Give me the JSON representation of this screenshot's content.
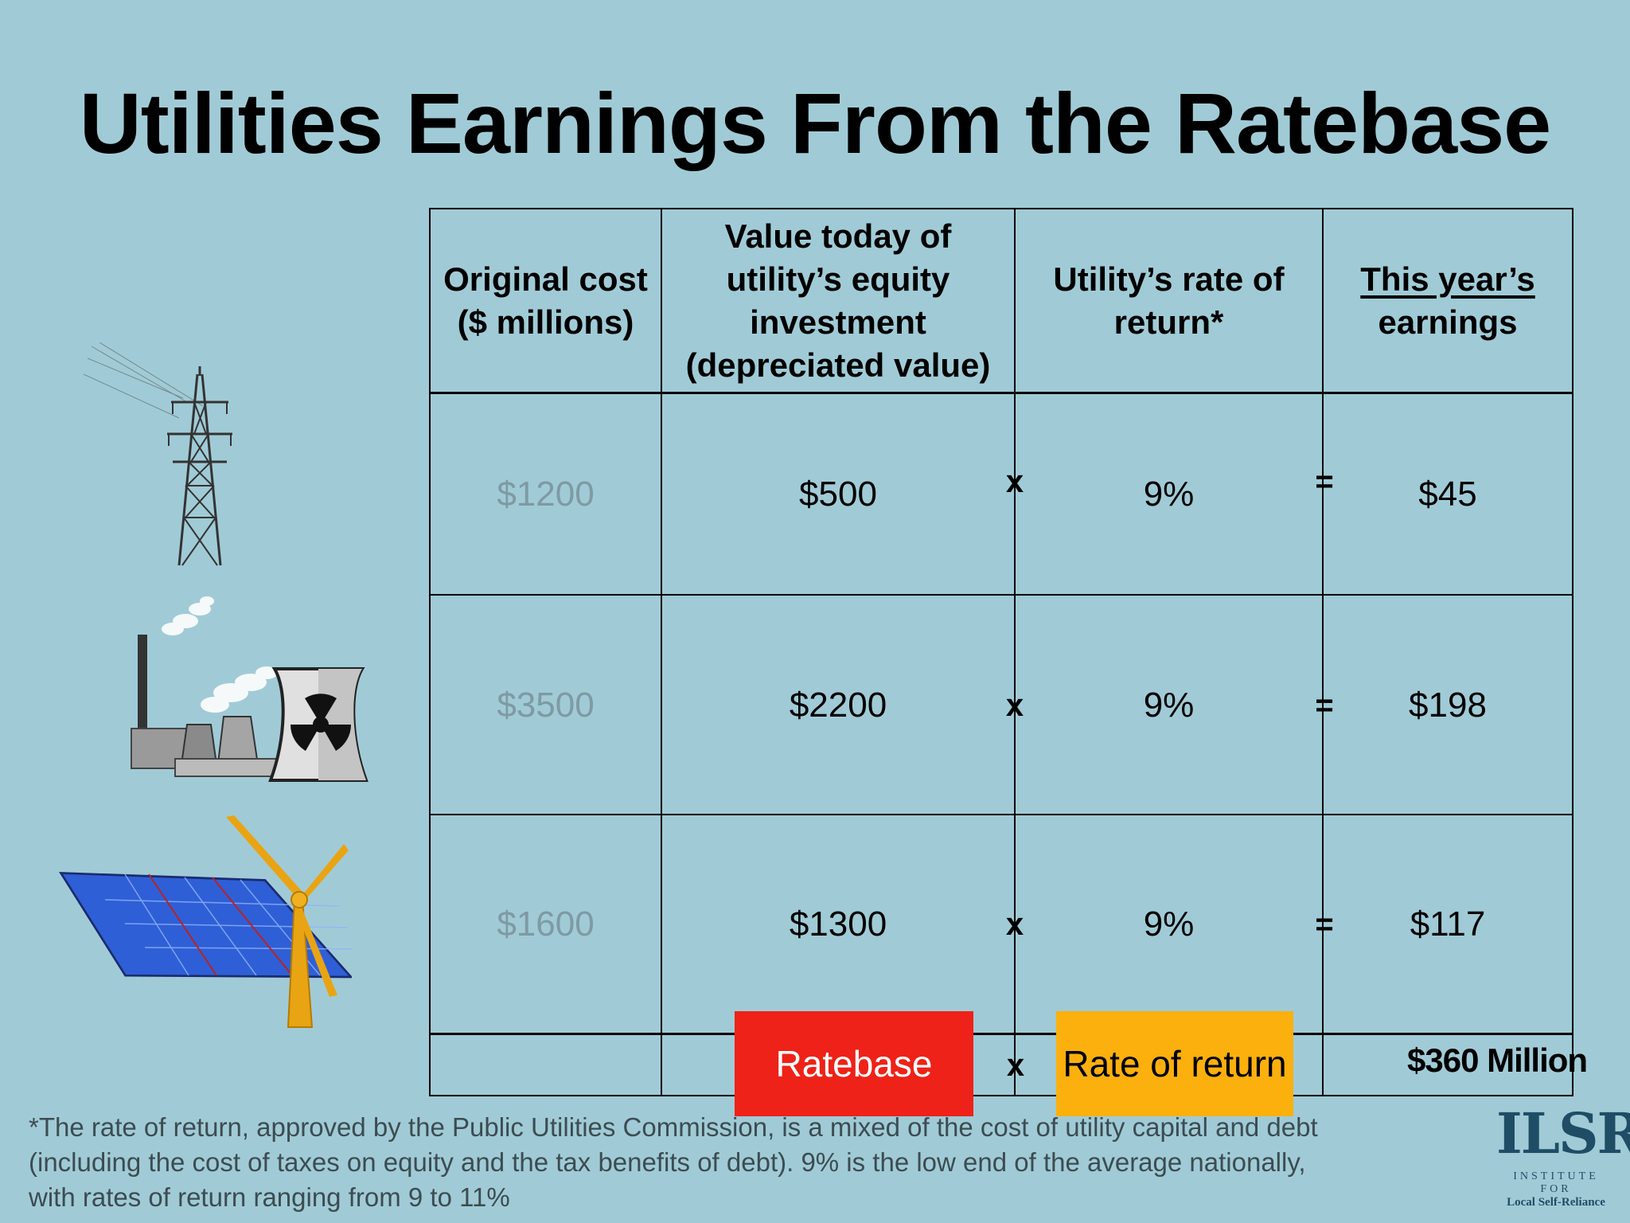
{
  "title": "Utilities Earnings From the Ratebase",
  "headers": {
    "original_cost": [
      "Original cost",
      "($ millions)"
    ],
    "value_today": [
      "Value today of",
      "utility’s equity",
      "investment",
      "(depreciated value)"
    ],
    "rate_of_return": [
      "Utility’s rate of",
      "return*"
    ],
    "earnings": [
      "This year’s",
      "earnings"
    ]
  },
  "rows": [
    {
      "original": "$1200",
      "value": "$500",
      "op1": "x",
      "rate": "9%",
      "op2": "=",
      "earnings": "$45",
      "icon": "transmission-tower-icon"
    },
    {
      "original": "$3500",
      "value": "$2200",
      "op1": "x",
      "rate": "9%",
      "op2": "=",
      "earnings": "$198",
      "icon": "power-plant-icon"
    },
    {
      "original": "$1600",
      "value": "$1300",
      "op1": "x",
      "rate": "9%",
      "op2": "=",
      "earnings": "$117",
      "icon": "solar-wind-icon"
    }
  ],
  "summary": {
    "ratebase_label": "Ratebase",
    "op": "x",
    "rate_label": "Rate of return",
    "total": "$360 Million"
  },
  "footnote": [
    "*The rate of return, approved by the Public Utilities Commission, is a mixed of the cost of utility capital and debt",
    "(including the cost of taxes on equity and the tax benefits of debt). 9% is the low end of the average nationally,",
    "with rates of return ranging from 9 to 11%"
  ],
  "logo": {
    "mark": "ILSR",
    "line1": "INSTITUTE FOR",
    "line2": "Local Self-Reliance"
  },
  "colors": {
    "background": "#a0cbd6",
    "ratebase": "#ee2218",
    "rate_of_return": "#fbb00e",
    "logo": "#1f4d66"
  }
}
